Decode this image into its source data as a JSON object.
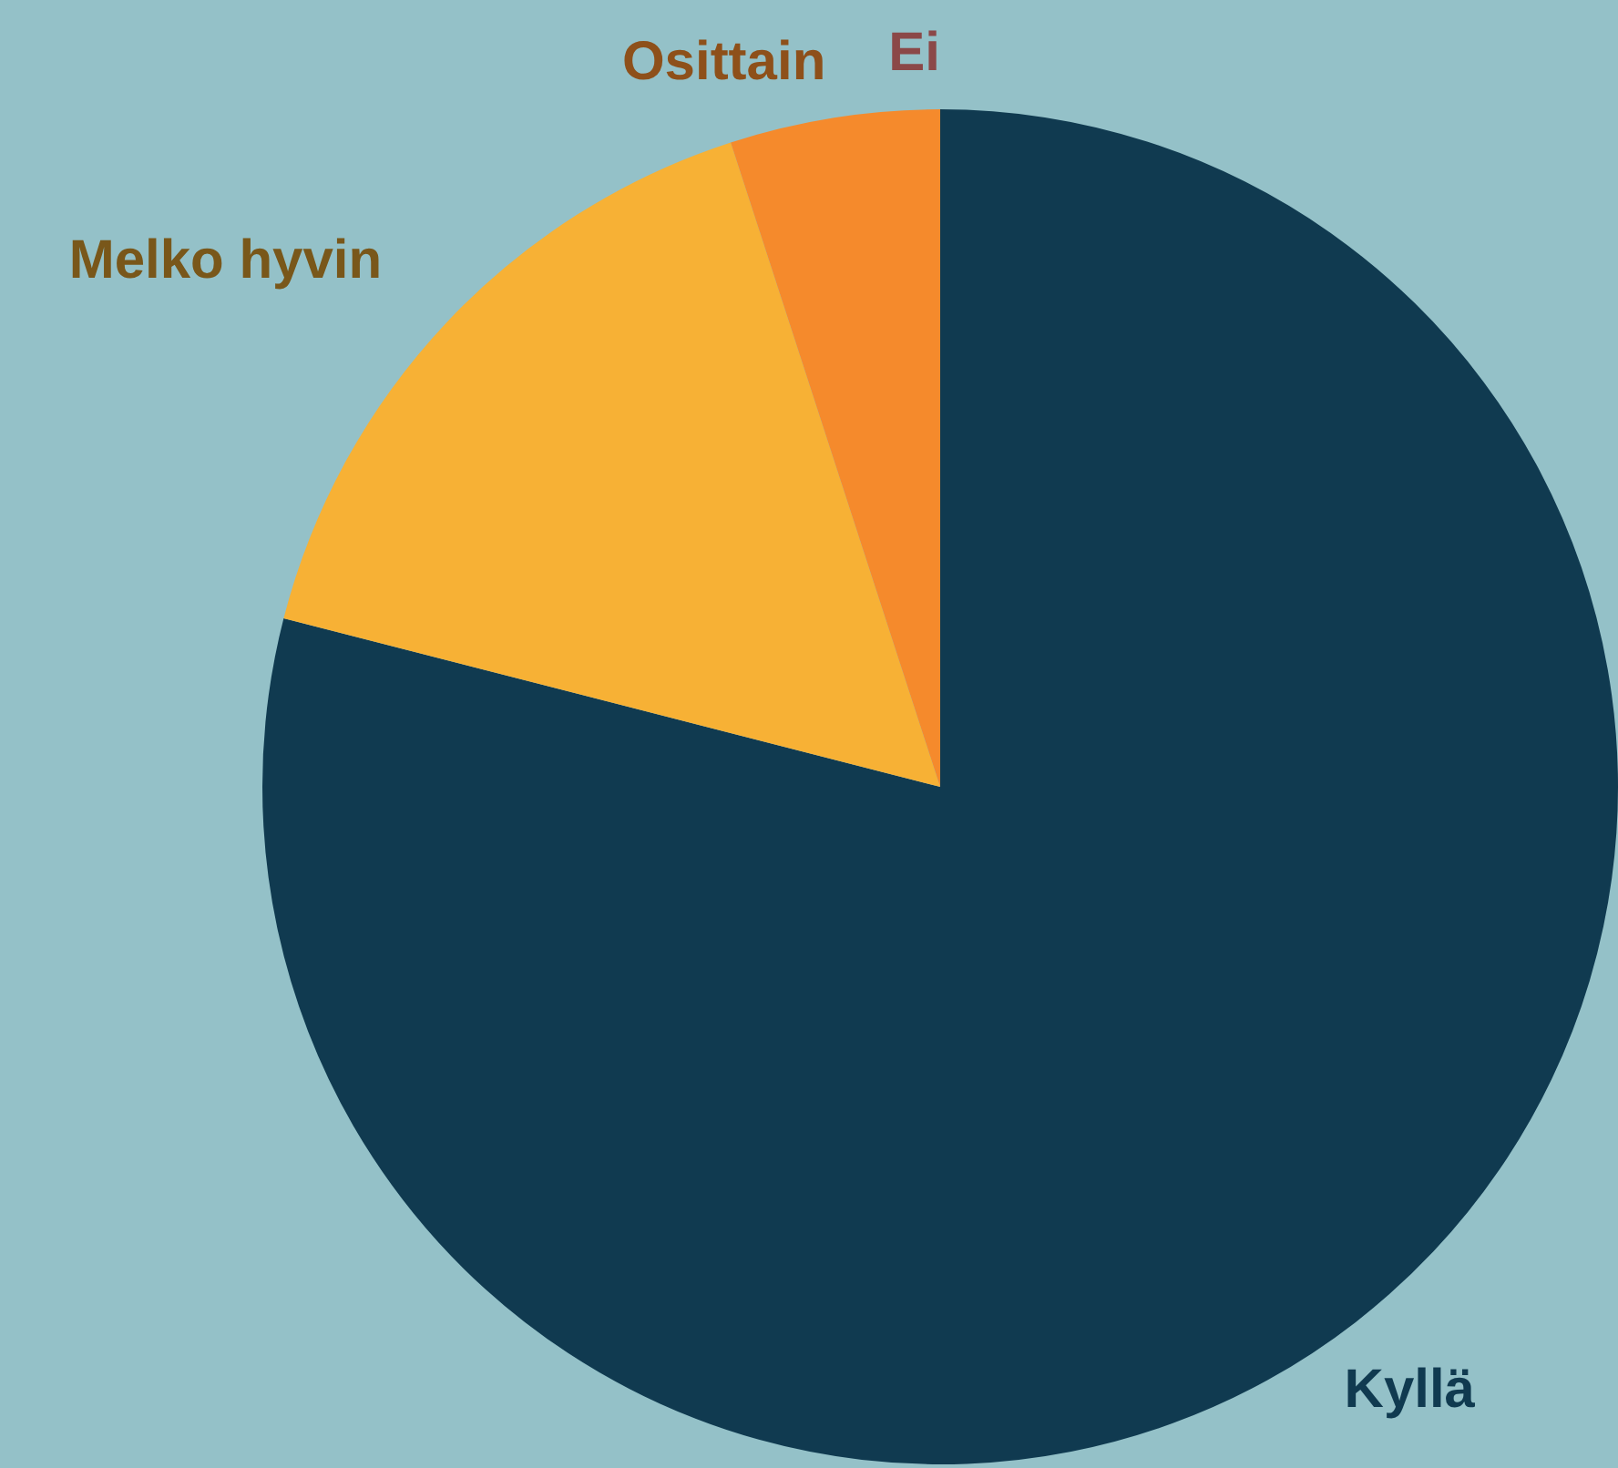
{
  "chart_data": {
    "type": "pie",
    "categories": [
      "Kyllä",
      "Melko hyvin",
      "Osittain",
      "Ei"
    ],
    "values": [
      79,
      16,
      5,
      0
    ],
    "colors": [
      "#103a50",
      "#f7b135",
      "#f58a2c",
      "#f07c7c"
    ],
    "legend": false
  }
}
